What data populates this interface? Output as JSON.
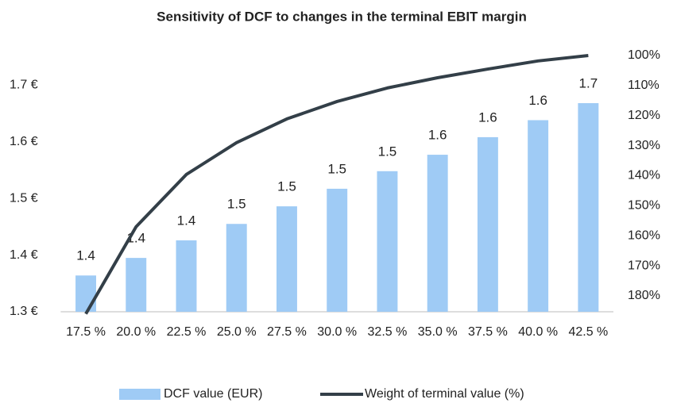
{
  "chart_data": {
    "type": "bar",
    "title": "Sensitivity of DCF to changes in the terminal EBIT margin",
    "categories": [
      "17.5 %",
      "20.0 %",
      "22.5 %",
      "25.0 %",
      "27.5 %",
      "30.0 %",
      "32.5 %",
      "35.0 %",
      "37.5 %",
      "40.0 %",
      "42.5 %"
    ],
    "series": [
      {
        "name": "DCF value (EUR)",
        "type": "bar",
        "color": "#9fcbf5",
        "values": [
          1.364,
          1.395,
          1.426,
          1.455,
          1.486,
          1.517,
          1.548,
          1.577,
          1.608,
          1.638,
          1.668
        ],
        "value_labels": [
          "1.4",
          "1.4",
          "1.4",
          "1.5",
          "1.5",
          "1.5",
          "1.5",
          "1.6",
          "1.6",
          "1.6",
          "1.7"
        ]
      },
      {
        "name": "Weight of terminal value (%)",
        "type": "line",
        "axis": "y2",
        "color": "#333f48",
        "values": [
          186,
          157,
          139.6,
          129,
          121.1,
          115.3,
          110.8,
          107.4,
          104.5,
          101.8,
          100
        ]
      }
    ],
    "ylim": [
      1.3,
      1.752
    ],
    "yticks": [
      {
        "value": 1.3,
        "label": "1.3 €"
      },
      {
        "value": 1.4,
        "label": "1.4 €"
      },
      {
        "value": 1.5,
        "label": "1.5 €"
      },
      {
        "value": 1.6,
        "label": "1.6 €"
      },
      {
        "value": 1.7,
        "label": "1.7 €"
      }
    ],
    "y2lim": [
      100,
      185.3
    ],
    "y2_reversed": true,
    "y2ticks": [
      {
        "value": 100,
        "label": "100%"
      },
      {
        "value": 110,
        "label": "110%"
      },
      {
        "value": 120,
        "label": "120%"
      },
      {
        "value": 130,
        "label": "130%"
      },
      {
        "value": 140,
        "label": "140%"
      },
      {
        "value": 150,
        "label": "150%"
      },
      {
        "value": 160,
        "label": "160%"
      },
      {
        "value": 170,
        "label": "170%"
      },
      {
        "value": 180,
        "label": "180%"
      }
    ],
    "grid": false,
    "legend": "bottom"
  }
}
